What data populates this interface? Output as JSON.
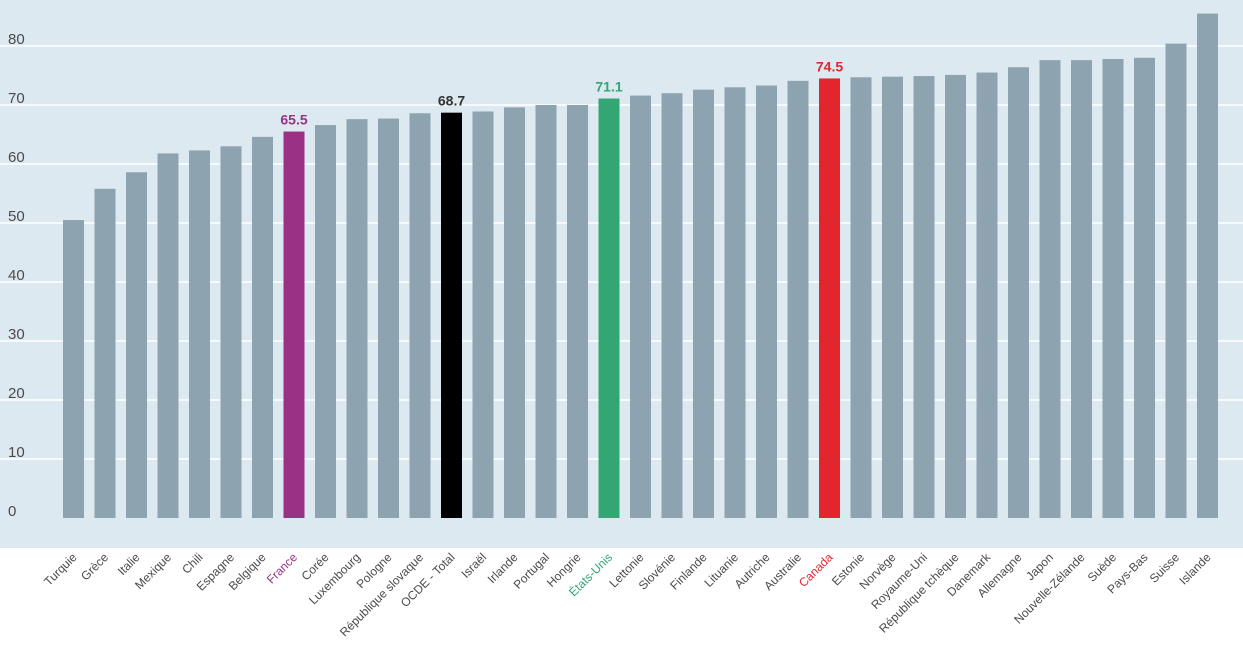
{
  "chart_data": {
    "type": "bar",
    "title": "",
    "xlabel": "",
    "ylabel": "",
    "ylim": [
      0,
      88
    ],
    "yticks": [
      0,
      10,
      20,
      30,
      40,
      50,
      60,
      70,
      80
    ],
    "grid": true,
    "legend": "none",
    "categories": [
      "Turquie",
      "Grèce",
      "Italie",
      "Mexique",
      "Chili",
      "Espagne",
      "Belgique",
      "France",
      "Corée",
      "Luxembourg",
      "Pologne",
      "République slovaque",
      "OCDE - Total",
      "Israël",
      "Irlande",
      "Portugal",
      "Hongrie",
      "États-Unis",
      "Lettonie",
      "Slovénie",
      "Finlande",
      "Lituanie",
      "Autriche",
      "Australie",
      "Canada",
      "Estonie",
      "Norvège",
      "Royaume-Uni",
      "République tchèque",
      "Danemark",
      "Allemagne",
      "Japon",
      "Nouvelle-Zélande",
      "Suède",
      "Pays-Bas",
      "Suisse",
      "Islande"
    ],
    "values": [
      50.5,
      55.8,
      58.6,
      61.8,
      62.3,
      63.0,
      64.6,
      65.5,
      66.6,
      67.6,
      67.7,
      68.6,
      68.7,
      68.9,
      69.6,
      70.0,
      70.0,
      71.1,
      71.6,
      72.0,
      72.6,
      73.0,
      73.3,
      74.1,
      74.5,
      74.7,
      74.8,
      74.9,
      75.1,
      75.5,
      76.4,
      77.6,
      77.6,
      77.8,
      78.0,
      80.4,
      85.5
    ],
    "highlights": {
      "France": {
        "color": "#9b3184",
        "label": "65.5"
      },
      "OCDE - Total": {
        "color": "#000000",
        "label": "68.7"
      },
      "États-Unis": {
        "color": "#33a674",
        "label": "71.1"
      },
      "Canada": {
        "color": "#e3262e",
        "label": "74.5"
      }
    },
    "colors": {
      "bar_default": "#8ea3b0",
      "plot_background": "#dde9f1",
      "gridline": "#ffffff",
      "tick_text": "#4a4a4a",
      "label_label_default": "#4a4a4a",
      "data_label_default": "#333333"
    }
  }
}
